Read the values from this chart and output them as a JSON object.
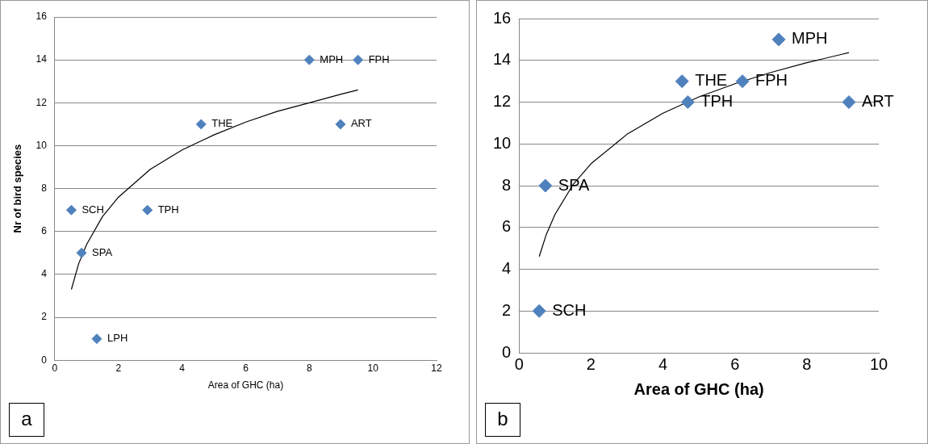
{
  "chart_data": [
    {
      "type": "scatter",
      "ylabel": "Nr of bird species",
      "xlabel": "Area of GHC (ha)",
      "xlim": [
        0,
        12
      ],
      "xticks": [
        0,
        2,
        4,
        6,
        8,
        10,
        12
      ],
      "ylim": [
        0,
        16
      ],
      "yticks": [
        0,
        2,
        4,
        6,
        8,
        10,
        12,
        14,
        16
      ],
      "grid": "y",
      "legend": false,
      "marker": "diamond",
      "series": [
        {
          "type": "scatter",
          "color": "#4f81bd",
          "x": [
            0.52,
            0.84,
            1.32,
            2.91,
            4.6,
            8.0,
            9.53,
            8.98
          ],
          "values": [
            7,
            5,
            1,
            7,
            11,
            14,
            14,
            11
          ]
        },
        {
          "type": "line",
          "color": "#000000",
          "marker": "none",
          "x": [
            0.52,
            0.75,
            1,
            1.5,
            2,
            3,
            4,
            5,
            6,
            7,
            8,
            9,
            9.53
          ],
          "values": [
            3.3,
            4.5,
            5.4,
            6.7,
            7.6,
            8.9,
            9.8,
            10.5,
            11.1,
            11.6,
            12.0,
            12.4,
            12.6
          ]
        }
      ],
      "annotations": [
        {
          "text": "SCH",
          "x": 0.52,
          "y": 7
        },
        {
          "text": "SPA",
          "x": 0.84,
          "y": 5
        },
        {
          "text": "LPH",
          "x": 1.32,
          "y": 1
        },
        {
          "text": "TPH",
          "x": 2.91,
          "y": 7
        },
        {
          "text": "THE",
          "x": 4.6,
          "y": 11
        },
        {
          "text": "MPH",
          "x": 8.0,
          "y": 14
        },
        {
          "text": "FPH",
          "x": 9.53,
          "y": 14
        },
        {
          "text": "ART",
          "x": 8.98,
          "y": 11
        },
        "a"
      ]
    },
    {
      "type": "scatter",
      "xlabel": "Area of GHC (ha)",
      "xlim": [
        0,
        10
      ],
      "xticks": [
        0,
        2,
        4,
        6,
        8,
        10
      ],
      "ylim": [
        0,
        16
      ],
      "yticks": [
        0,
        2,
        4,
        6,
        8,
        10,
        12,
        14,
        16
      ],
      "grid": "y",
      "legend": false,
      "marker": "diamond",
      "series": [
        {
          "type": "scatter",
          "color": "#4f81bd",
          "x": [
            0.56,
            0.73,
            4.53,
            4.69,
            6.21,
            7.22,
            9.17
          ],
          "values": [
            2,
            8,
            13,
            12,
            13,
            15,
            12
          ]
        },
        {
          "type": "line",
          "color": "#000000",
          "marker": "none",
          "x": [
            0.56,
            0.75,
            1,
            1.5,
            2,
            3,
            4,
            5,
            6,
            7,
            8,
            9,
            9.17
          ],
          "values": [
            4.61,
            5.63,
            6.63,
            8.05,
            9.05,
            10.46,
            11.47,
            12.25,
            12.88,
            13.42,
            13.89,
            14.3,
            14.37
          ]
        }
      ],
      "annotations": [
        {
          "text": "SCH",
          "x": 0.56,
          "y": 2
        },
        {
          "text": "SPA",
          "x": 0.73,
          "y": 8
        },
        {
          "text": "THE",
          "x": 4.53,
          "y": 13
        },
        {
          "text": "TPH",
          "x": 4.69,
          "y": 12
        },
        {
          "text": "FPH",
          "x": 6.21,
          "y": 13
        },
        {
          "text": "MPH",
          "x": 7.22,
          "y": 15
        },
        {
          "text": "ART",
          "x": 9.17,
          "y": 12
        },
        "b"
      ]
    }
  ]
}
